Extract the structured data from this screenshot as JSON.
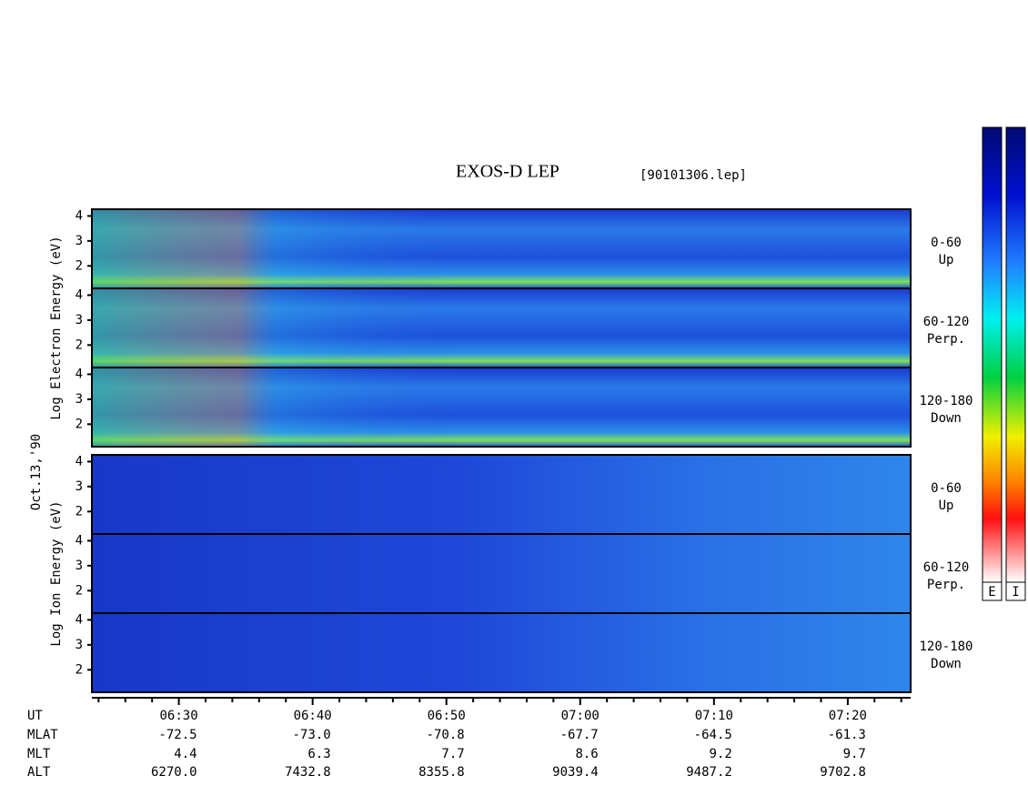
{
  "chart_data": {
    "type": "spectrogram",
    "title": "EXOS-D LEP",
    "subtitle": "[90101306.lep]",
    "date_label": "Oct.13,'90",
    "ylim": [
      1.1,
      4.27
    ],
    "yticks": [
      2,
      3,
      4
    ],
    "xlim": [
      383.5,
      444.7
    ],
    "xticks": [
      {
        "value": 390,
        "label": "06:30"
      },
      {
        "value": 400,
        "label": "06:40"
      },
      {
        "value": 410,
        "label": "06:50"
      },
      {
        "value": 420,
        "label": "07:00"
      },
      {
        "value": 430,
        "label": "07:10"
      },
      {
        "value": 440,
        "label": "07:20"
      }
    ],
    "xminorticks": [
      384,
      386,
      388,
      392,
      394,
      396,
      398,
      402,
      404,
      406,
      408,
      412,
      414,
      416,
      418,
      422,
      424,
      426,
      428,
      432,
      434,
      436,
      438,
      442,
      444
    ],
    "xlabel": "UT",
    "ephemeris": [
      {
        "name": "MLAT",
        "values": [
          "-72.5",
          "-73.0",
          "-70.8",
          "-67.7",
          "-64.5",
          "-61.3"
        ]
      },
      {
        "name": "MLT",
        "values": [
          "4.4",
          "6.3",
          "7.7",
          "8.6",
          "9.2",
          "9.7"
        ]
      },
      {
        "name": "ALT",
        "values": [
          "6270.0",
          "7432.8",
          "8355.8",
          "9039.4",
          "9487.2",
          "9702.8"
        ]
      }
    ],
    "groups": [
      {
        "ylabel": "Log Electron Energy (eV)",
        "panels": [
          {
            "pitch": "0-60",
            "direction": "Up"
          },
          {
            "pitch": "60-120",
            "direction": "Perp."
          },
          {
            "pitch": "120-180",
            "direction": "Down"
          }
        ]
      },
      {
        "ylabel": "Log Ion Energy (eV)",
        "panels": [
          {
            "pitch": "0-60",
            "direction": "Up"
          },
          {
            "pitch": "60-120",
            "direction": "Perp."
          },
          {
            "pitch": "120-180",
            "direction": "Down"
          }
        ]
      }
    ],
    "colorbars": [
      "E",
      "I"
    ]
  }
}
